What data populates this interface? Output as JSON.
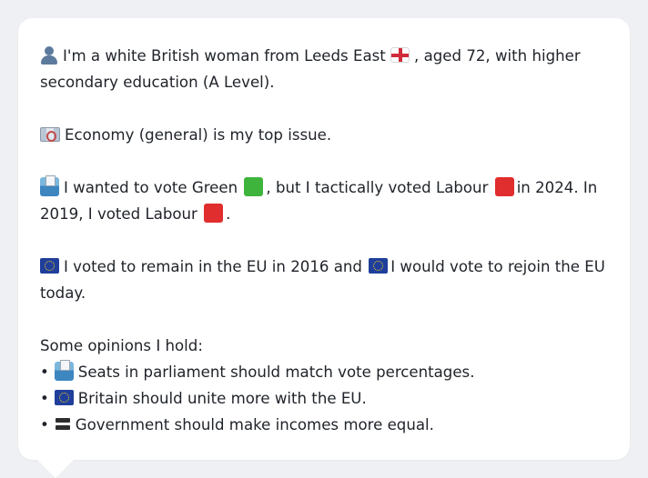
{
  "profile": {
    "identity": {
      "icon": "person-icon",
      "text_before_flag": "I'm a white British woman from Leeds East",
      "flag_icon": "england-flag-icon",
      "text_after_flag": ", aged 72, with higher secondary education (A Level)."
    },
    "top_issue": {
      "icon": "money-icon",
      "text": "Economy (general) is my top issue."
    },
    "vote": {
      "icon": "ballot-box-icon",
      "part1": "I wanted to vote Green",
      "part2": ", but I tactically voted Labour",
      "part3": "in 2024. In 2019, I voted Labour",
      "part4": ".",
      "colors": {
        "green": "#3fb43c",
        "labour": "#e02d2d"
      }
    },
    "eu": {
      "icon": "eu-flag-icon",
      "part1": "I voted to remain in the EU in 2016 and",
      "part2": "I would vote to rejoin the EU today."
    },
    "opinions_heading": "Some opinions I hold:",
    "bullet_char": "•",
    "opinions": [
      {
        "icon": "ballot-box-icon",
        "text": "Seats in parliament should match vote percentages."
      },
      {
        "icon": "eu-flag-icon",
        "text": "Britain should unite more with the EU."
      },
      {
        "icon": "equals-icon",
        "text": "Government should make incomes more equal."
      }
    ]
  }
}
